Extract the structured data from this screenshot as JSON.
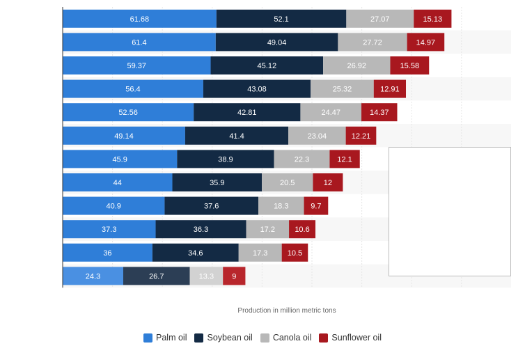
{
  "chart_data": {
    "type": "bar",
    "orientation": "horizontal",
    "stacked": true,
    "xlabel": "Production in million metric tons",
    "row_count": 12,
    "series": [
      {
        "name": "Palm oil",
        "color": "#2f7ed8",
        "values": [
          61.68,
          61.4,
          59.37,
          56.4,
          52.56,
          49.14,
          45.9,
          44,
          40.9,
          37.3,
          36,
          24.3
        ],
        "labels": [
          "61.68",
          "61.4",
          "59.37",
          "56.4",
          "52.56",
          "49.14",
          "45.9",
          "44",
          "40.9",
          "37.3",
          "36",
          "24.3"
        ]
      },
      {
        "name": "Soybean oil",
        "color": "#132a44",
        "values": [
          52.1,
          49.04,
          45.12,
          43.08,
          42.81,
          41.4,
          38.9,
          35.9,
          37.6,
          36.3,
          34.6,
          26.7
        ],
        "labels": [
          "52.1",
          "49.04",
          "45.12",
          "43.08",
          "42.81",
          "41.4",
          "38.9",
          "35.9",
          "37.6",
          "36.3",
          "34.6",
          "26.7"
        ]
      },
      {
        "name": "Canola oil",
        "color": "#b8b8b8",
        "values": [
          27.07,
          27.72,
          26.92,
          25.32,
          24.47,
          23.04,
          22.3,
          20.5,
          18.3,
          17.2,
          17.3,
          13.3
        ],
        "labels": [
          "27.07",
          "27.72",
          "26.92",
          "25.32",
          "24.47",
          "23.04",
          "22.3",
          "20.5",
          "18.3",
          "17.2",
          "17.3",
          "13.3"
        ]
      },
      {
        "name": "Sunflower oil",
        "color": "#a8181f",
        "values": [
          15.13,
          14.97,
          15.58,
          12.91,
          14.37,
          12.21,
          12.1,
          12,
          9.7,
          10.6,
          10.5,
          9
        ],
        "labels": [
          "15.13",
          "14.97",
          "15.58",
          "12.91",
          "14.37",
          "12.21",
          "12.1",
          "12",
          "9.7",
          "10.6",
          "10.5",
          "9"
        ]
      }
    ],
    "highlight_last_row": true,
    "highlight_colors": {
      "Palm oil": "#4a90e2",
      "Soybean oil": "#2c3e55",
      "Canola oil": "#d2d2d2",
      "Sunflower oil": "#b8262c"
    },
    "grid": true,
    "legend_position": "bottom"
  }
}
